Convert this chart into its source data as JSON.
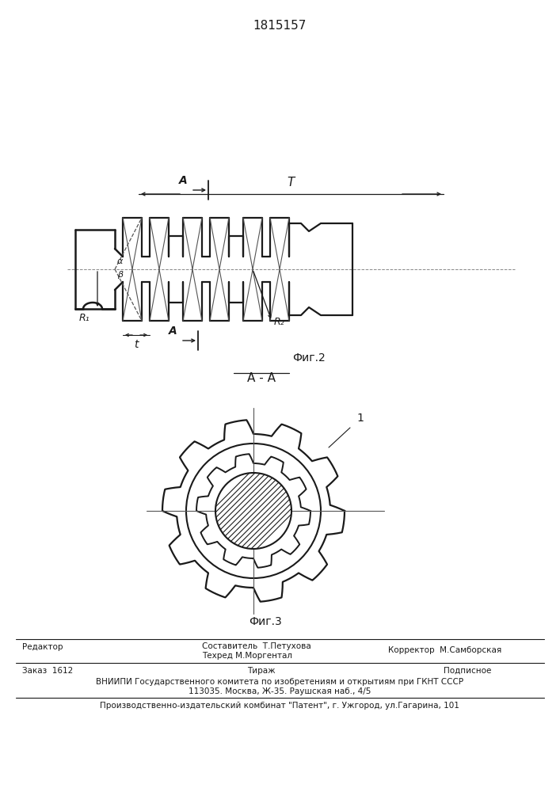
{
  "patent_number": "1815157",
  "fig2_label": "Фиг.2",
  "fig3_label": "Фиг.3",
  "section_label": "A - A",
  "footer_line1_left": "Редактор",
  "footer_line1_mid1": "Составитель  Т.Петухова",
  "footer_line1_mid2": "Техред М.Моргентал",
  "footer_line1_right": "Корректор  М.Самборская",
  "footer_line2_left": "Заказ  1612",
  "footer_line2_mid": "Тираж",
  "footer_line2_right": "Подписное",
  "footer_line3": "ВНИИПИ Государственного комитета по изобретениям и открытиям при ГКНТ СССР",
  "footer_line4": "113035. Москва, Ж-35. Раушская наб., 4/5",
  "footer_line5": "Производственно-издательский комбинат \"Патент\", г. Ужгород, ул.Гагарина, 101",
  "bg_color": "#ffffff",
  "line_color": "#1a1a1a"
}
